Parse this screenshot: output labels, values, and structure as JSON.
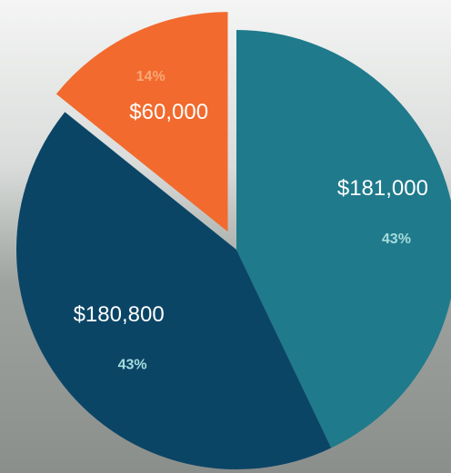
{
  "chart_data": {
    "type": "pie",
    "categories": [
      null,
      null,
      null
    ],
    "values": [
      181000,
      180800,
      60000
    ],
    "value_labels": [
      "$181,000",
      "$180,800",
      "$60,000"
    ],
    "percent_labels": [
      "43%",
      "43%",
      "14%"
    ],
    "colors": [
      "#1f7a8c",
      "#0b4566",
      "#f26a2e"
    ],
    "exploded": [
      false,
      false,
      true
    ]
  }
}
